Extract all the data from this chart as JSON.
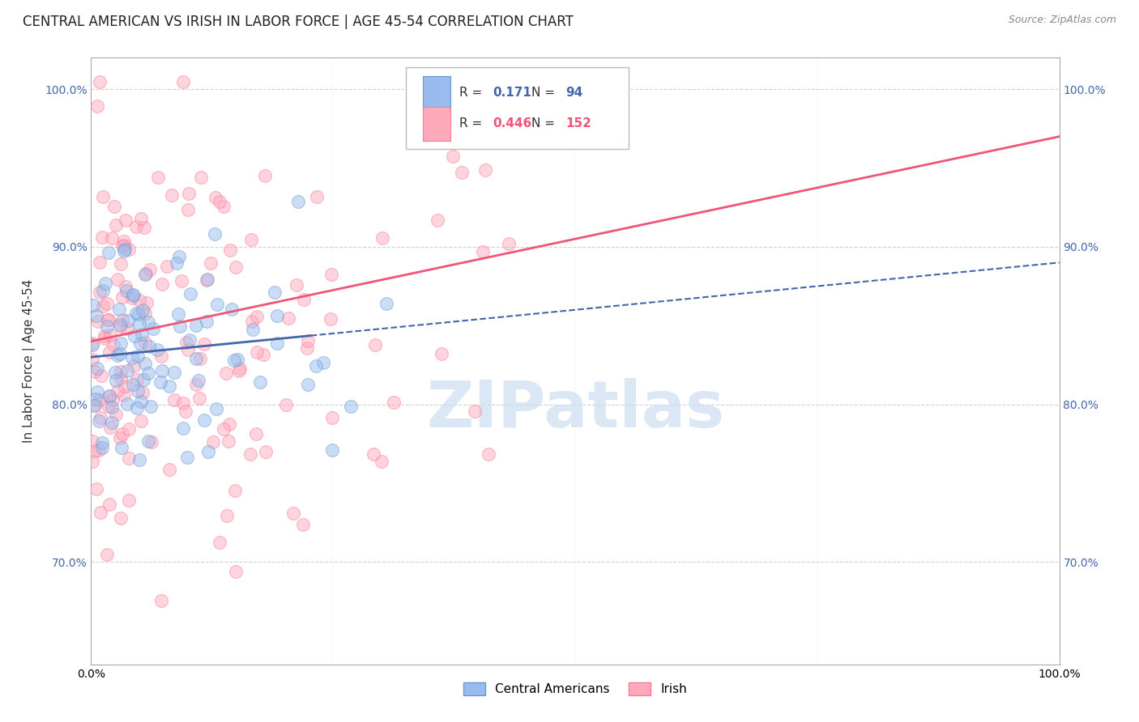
{
  "title": "CENTRAL AMERICAN VS IRISH IN LABOR FORCE | AGE 45-54 CORRELATION CHART",
  "source": "Source: ZipAtlas.com",
  "ylabel": "In Labor Force | Age 45-54",
  "xlim": [
    0.0,
    1.0
  ],
  "ylim": [
    0.635,
    1.02
  ],
  "yticks": [
    0.7,
    0.8,
    0.9,
    1.0
  ],
  "ytick_labels": [
    "70.0%",
    "80.0%",
    "90.0%",
    "100.0%"
  ],
  "legend_r_blue_val": "0.171",
  "legend_n_blue_val": "94",
  "legend_r_pink_val": "0.446",
  "legend_n_pink_val": "152",
  "blue_color": "#99BBEE",
  "pink_color": "#FFAABB",
  "blue_edge_color": "#6699CC",
  "pink_edge_color": "#FF7799",
  "blue_line_color": "#4466AA",
  "pink_line_color": "#EE5577",
  "watermark": "ZIPatlas",
  "watermark_color": "#CCDDF0",
  "blue_intercept": 0.83,
  "blue_slope": 0.06,
  "pink_intercept": 0.84,
  "pink_slope": 0.13,
  "background_color": "#FFFFFF",
  "grid_color": "#CCCCCC",
  "title_fontsize": 12,
  "label_fontsize": 11,
  "tick_fontsize": 10,
  "marker_size": 130,
  "alpha": 0.5
}
